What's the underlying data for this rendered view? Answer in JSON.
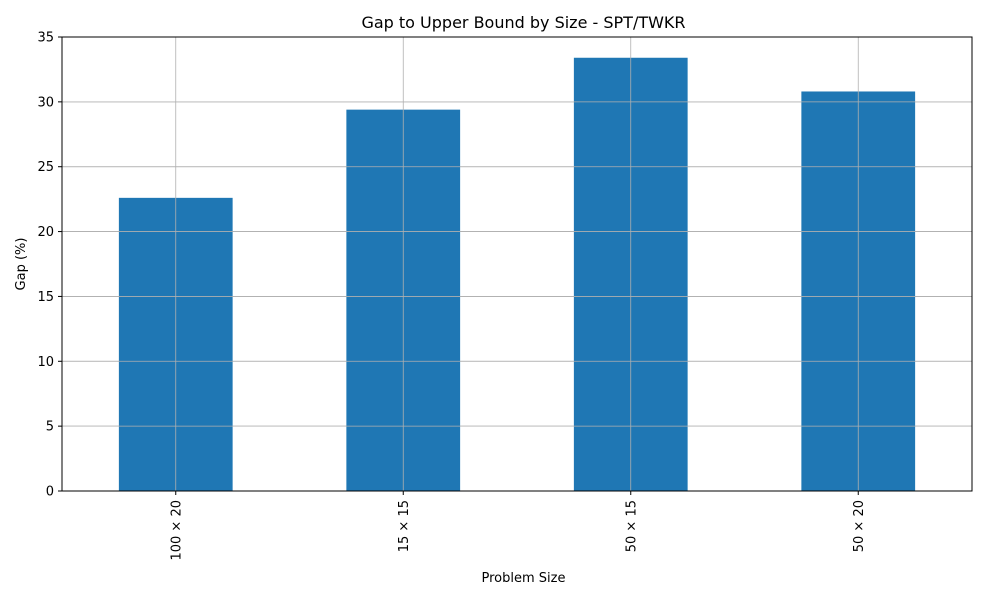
{
  "chart_data": {
    "type": "bar",
    "title": "Gap to Upper Bound by Size - SPT/TWKR",
    "xlabel": "Problem Size",
    "ylabel": "Gap (%)",
    "categories": [
      "100 × 20",
      "15 × 15",
      "50 × 15",
      "50 × 20"
    ],
    "values": [
      22.6,
      29.4,
      33.4,
      30.8
    ],
    "ylim": [
      0,
      35
    ],
    "yticks": [
      0,
      5,
      10,
      15,
      20,
      25,
      30,
      35
    ],
    "grid": true,
    "legend": "none",
    "bar_color": "#1f77b4",
    "x_tick_rotation": "vertical"
  }
}
